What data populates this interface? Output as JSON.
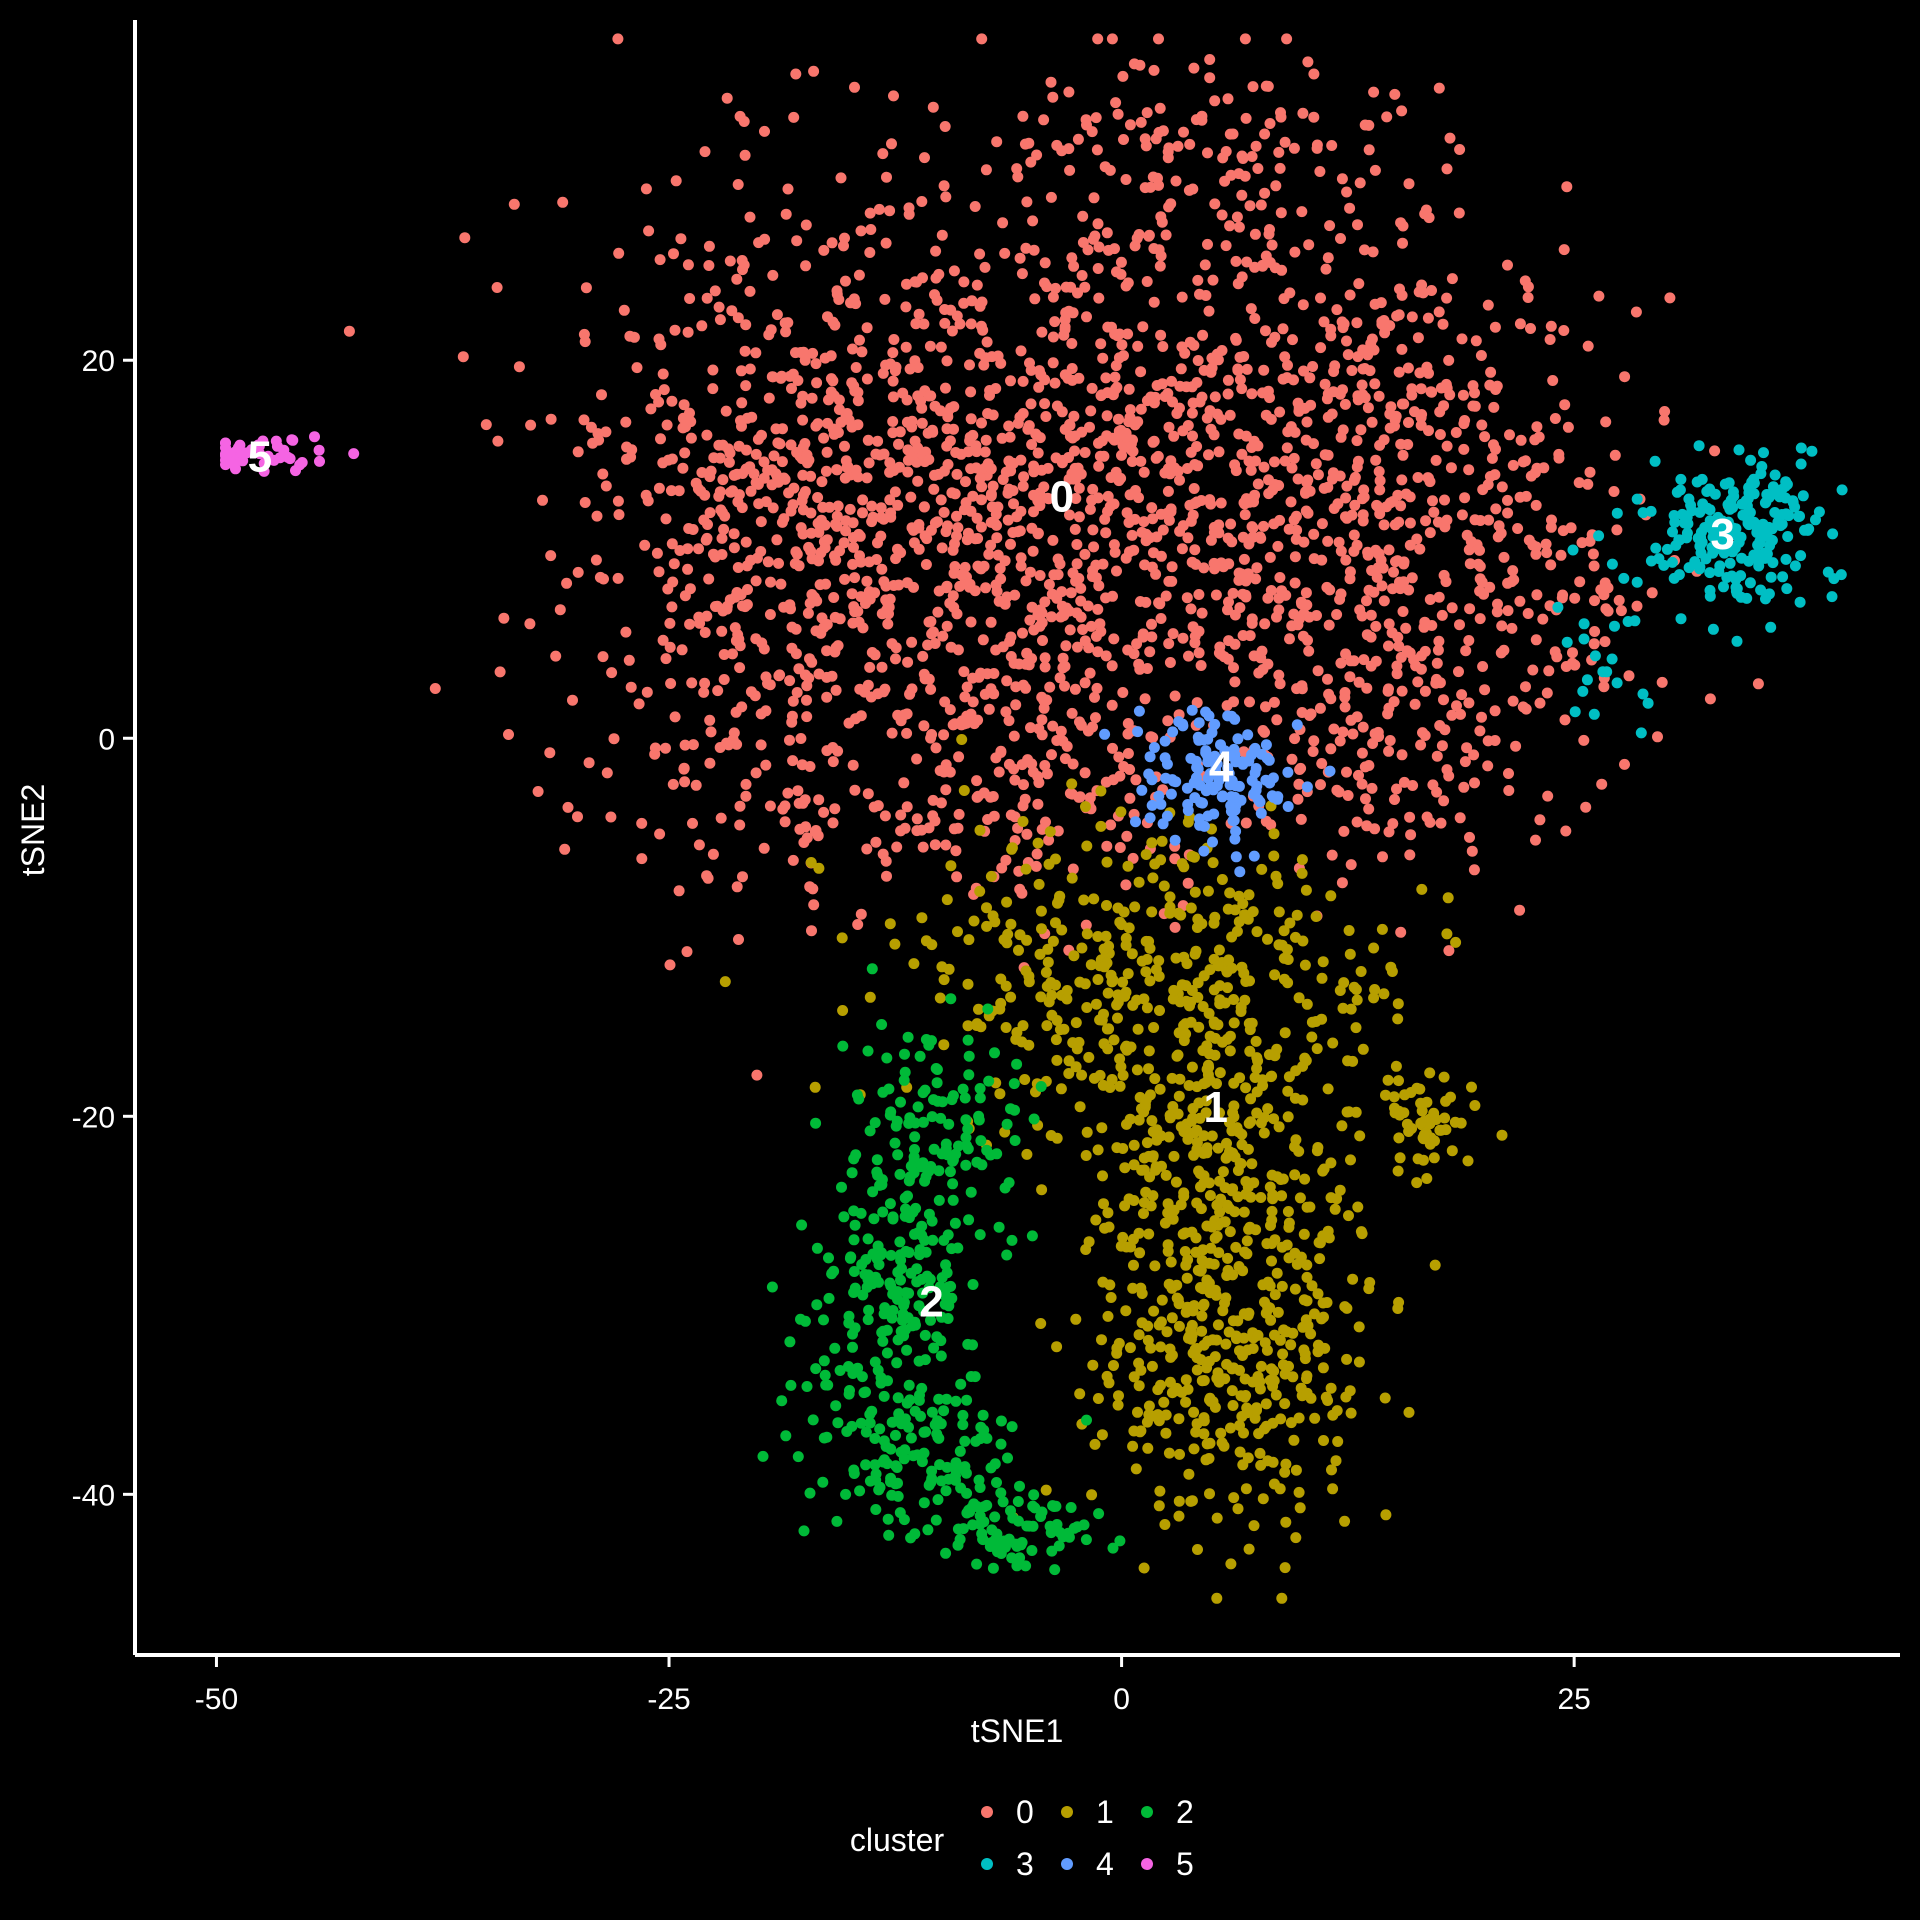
{
  "chart_data": {
    "type": "scatter",
    "title": "",
    "xlabel": "tSNE1",
    "ylabel": "tSNE2",
    "xlim": [
      -54.5,
      43
    ],
    "ylim": [
      -48.5,
      38
    ],
    "xticks": [
      -50,
      -25,
      0,
      25
    ],
    "yticks": [
      20,
      0,
      -20,
      -40
    ],
    "legend": {
      "title": "cluster",
      "position": "bottom",
      "entries": [
        "0",
        "1",
        "2",
        "3",
        "4",
        "5"
      ]
    },
    "grid": false,
    "background": "#000000",
    "series": [
      {
        "name": "0",
        "color": "#F8766D",
        "count": 2600,
        "regions": [
          {
            "cx": -5,
            "cy": 13,
            "sx": 12,
            "sy": 8,
            "w": 0.55
          },
          {
            "cx": -20,
            "cy": 8,
            "sx": 5,
            "sy": 9,
            "w": 0.12
          },
          {
            "cx": 14,
            "cy": 14,
            "sx": 6,
            "sy": 7,
            "w": 0.14
          },
          {
            "cx": 5,
            "cy": 30,
            "sx": 6,
            "sy": 3,
            "w": 0.05
          },
          {
            "cx": -6,
            "cy": -3,
            "sx": 5,
            "sy": 3,
            "w": 0.06
          },
          {
            "cx": 16,
            "cy": 0,
            "sx": 4,
            "sy": 4,
            "w": 0.05
          },
          {
            "cx": 25,
            "cy": 8,
            "sx": 3,
            "sy": 4,
            "w": 0.03
          }
        ]
      },
      {
        "name": "1",
        "color": "#B79F00",
        "count": 1100,
        "regions": [
          {
            "cx": 2,
            "cy": -13,
            "sx": 7,
            "sy": 4,
            "w": 0.4
          },
          {
            "cx": 6,
            "cy": -31,
            "sx": 4,
            "sy": 6,
            "w": 0.45
          },
          {
            "cx": 4,
            "cy": -21,
            "sx": 3,
            "sy": 3,
            "w": 0.1
          },
          {
            "cx": 17,
            "cy": -20,
            "sx": 1.5,
            "sy": 1.5,
            "w": 0.05
          }
        ]
      },
      {
        "name": "2",
        "color": "#00BA38",
        "count": 520,
        "regions": [
          {
            "cx": -10,
            "cy": -21,
            "sx": 2.5,
            "sy": 3,
            "w": 0.25
          },
          {
            "cx": -13,
            "cy": -30,
            "sx": 2.5,
            "sy": 3.5,
            "w": 0.35
          },
          {
            "cx": -11,
            "cy": -38,
            "sx": 3,
            "sy": 2,
            "w": 0.25
          },
          {
            "cx": -6,
            "cy": -42,
            "sx": 2,
            "sy": 1,
            "w": 0.15
          }
        ]
      },
      {
        "name": "3",
        "color": "#00BFC4",
        "count": 240,
        "regions": [
          {
            "cx": 34,
            "cy": 11,
            "sx": 2.5,
            "sy": 2,
            "w": 0.9
          },
          {
            "cx": 27,
            "cy": 5,
            "sx": 1.5,
            "sy": 3,
            "w": 0.1
          }
        ]
      },
      {
        "name": "4",
        "color": "#619CFF",
        "count": 140,
        "regions": [
          {
            "cx": 5,
            "cy": -2,
            "sx": 2.2,
            "sy": 1.6,
            "w": 1.0
          }
        ]
      },
      {
        "name": "5",
        "color": "#F564E3",
        "count": 45,
        "regions": [
          {
            "cx": -47.5,
            "cy": 15,
            "sx": 1.5,
            "sy": 0.5,
            "w": 1.0
          }
        ]
      }
    ],
    "cluster_labels": [
      {
        "text": "0",
        "x": -3.3,
        "y": 12.8
      },
      {
        "text": "1",
        "x": 5.2,
        "y": -19.5
      },
      {
        "text": "2",
        "x": -10.5,
        "y": -29.8
      },
      {
        "text": "3",
        "x": 33.2,
        "y": 10.8
      },
      {
        "text": "4",
        "x": 5.5,
        "y": -1.5
      },
      {
        "text": "5",
        "x": -47.6,
        "y": 14.9
      }
    ]
  }
}
